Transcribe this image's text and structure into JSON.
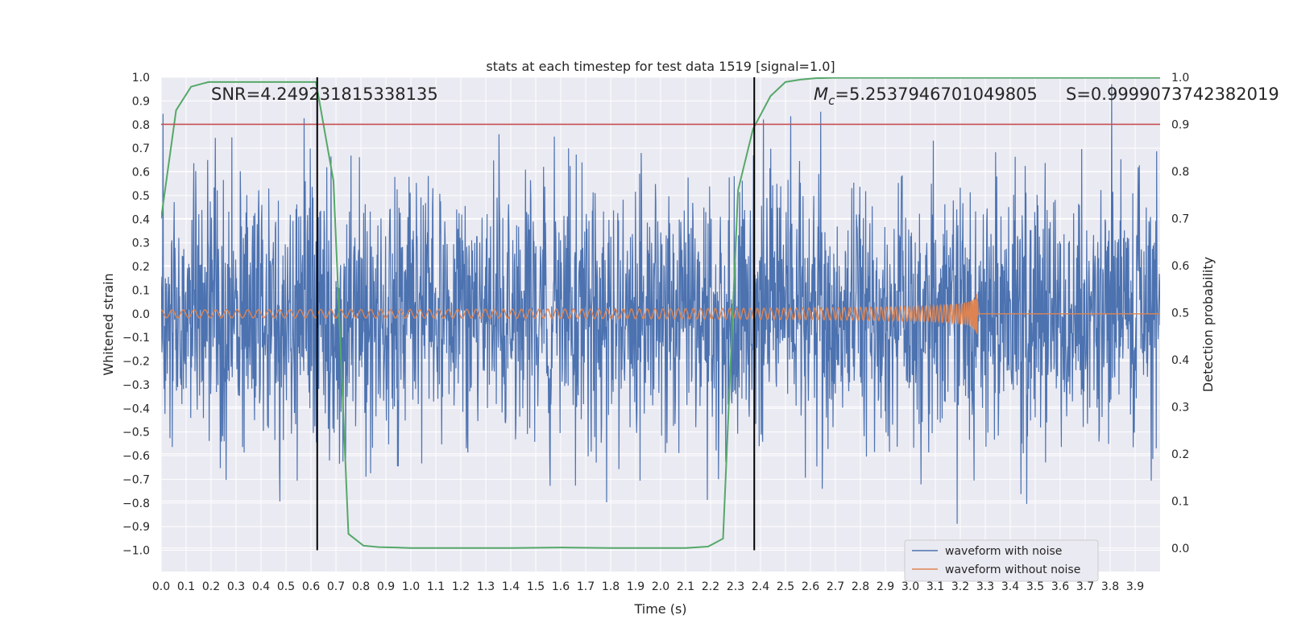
{
  "chart_data": {
    "type": "line",
    "title": "stats at each timestep for test data 1519 [signal=1.0]",
    "xlabel": "Time (s)",
    "ylabel": "Whitened strain",
    "y2label": "Detection probability",
    "xlim": [
      0.0,
      4.0
    ],
    "ylim": [
      -1.09,
      1.0
    ],
    "y2lim": [
      -0.05,
      1.0
    ],
    "x_ticks": [
      0.0,
      0.1,
      0.2,
      0.3,
      0.4,
      0.5,
      0.6,
      0.7,
      0.8,
      0.9,
      1.0,
      1.1,
      1.2,
      1.3,
      1.4,
      1.5,
      1.6,
      1.7,
      1.8,
      1.9,
      2.0,
      2.1,
      2.2,
      2.3,
      2.4,
      2.5,
      2.6,
      2.7,
      2.8,
      2.9,
      3.0,
      3.1,
      3.2,
      3.3,
      3.4,
      3.5,
      3.6,
      3.7,
      3.8,
      3.9
    ],
    "y_ticks": [
      -1.0,
      -0.9,
      -0.8,
      -0.7,
      -0.6,
      -0.5,
      -0.4,
      -0.3,
      -0.2,
      -0.1,
      0.0,
      0.1,
      0.2,
      0.3,
      0.4,
      0.5,
      0.6,
      0.7,
      0.8,
      0.9,
      1.0
    ],
    "y2_ticks": [
      0.0,
      0.1,
      0.2,
      0.3,
      0.4,
      0.5,
      0.6,
      0.7,
      0.8,
      0.9,
      1.0
    ],
    "grid": true,
    "legend_position": "lower-right",
    "annotations": {
      "snr": "SNR=4.249231815338135",
      "mc_symbol": "M",
      "mc_subscript": "c",
      "mc_value": "=5.2537946701049805",
      "s_text": "S=0.9999073742382019"
    },
    "series": [
      {
        "name": "waveform with noise",
        "color": "#4c72b0",
        "axis": "left",
        "description_values": "dense noise between about -1.0 and 1.0"
      },
      {
        "name": "waveform without noise",
        "color": "#dd8452",
        "axis": "left",
        "chirp_end_time": 3.27,
        "chirp_peak_amplitude": 0.09
      },
      {
        "name": "",
        "color": "#55a868",
        "axis": "right",
        "x": [
          0.0,
          0.06,
          0.12,
          0.19,
          0.25,
          0.31,
          0.37,
          0.44,
          0.5,
          0.56,
          0.62,
          0.69,
          0.75,
          0.81,
          0.87,
          0.94,
          1.0,
          1.2,
          1.4,
          1.6,
          1.8,
          2.0,
          2.1,
          2.19,
          2.25,
          2.31,
          2.37,
          2.44,
          2.5,
          2.56,
          2.62,
          2.69,
          2.75,
          3.0,
          3.5,
          4.0
        ],
        "values": [
          0.7,
          0.93,
          0.98,
          0.99,
          0.99,
          0.99,
          0.99,
          0.99,
          0.99,
          0.99,
          0.99,
          0.78,
          0.03,
          0.005,
          0.002,
          0.001,
          0.0,
          0.0,
          0.0,
          0.001,
          0.0,
          0.0,
          0.0,
          0.003,
          0.02,
          0.76,
          0.89,
          0.96,
          0.99,
          0.995,
          0.998,
          0.999,
          0.999,
          0.999,
          0.999,
          0.999
        ]
      }
    ],
    "threshold_line": {
      "value": 0.9,
      "axis": "right",
      "color": "#c44e52"
    },
    "vertical_markers": [
      0.625,
      2.375
    ]
  }
}
